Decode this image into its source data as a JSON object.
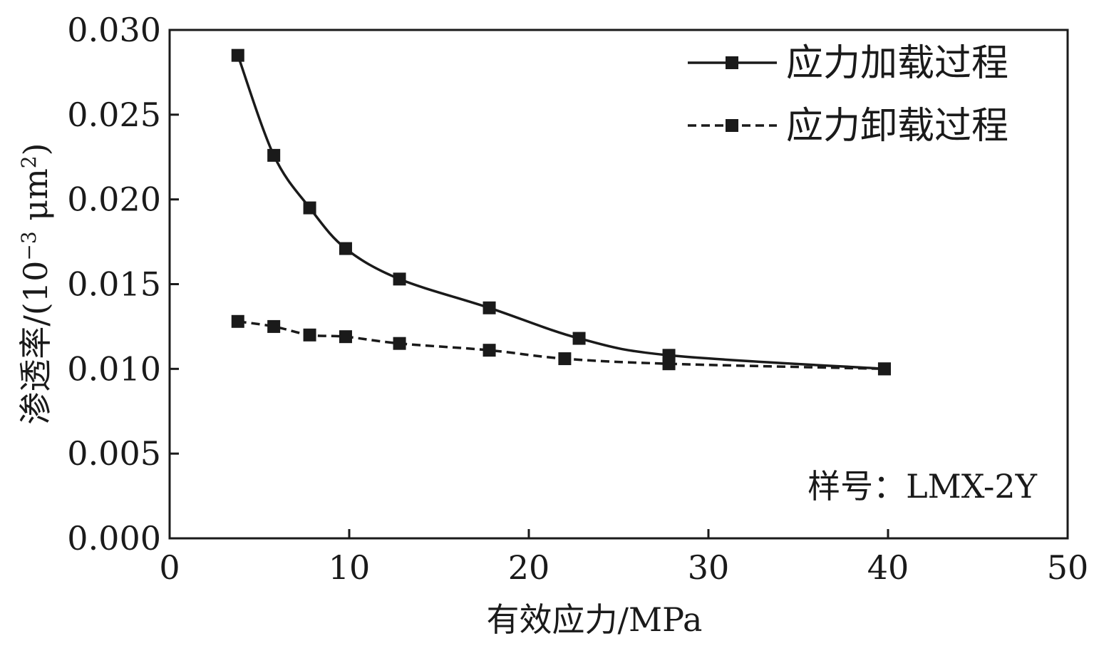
{
  "chart_data": {
    "type": "line",
    "xlabel": "有效应力/MPa",
    "ylabel": "渗透率/(10",
    "ylabel_exp1": "−3",
    "ylabel_mid": " μm",
    "ylabel_exp2": "2",
    "ylabel_end": ")",
    "xlim": [
      0,
      50
    ],
    "ylim": [
      0,
      0.03
    ],
    "x_ticks": [
      0,
      10,
      20,
      30,
      40,
      50
    ],
    "x_tick_labels": [
      "0",
      "10",
      "20",
      "30",
      "40",
      "50"
    ],
    "y_ticks": [
      0,
      0.005,
      0.01,
      0.015,
      0.02,
      0.025,
      0.03
    ],
    "y_tick_labels": [
      "0.000",
      "0.005",
      "0.010",
      "0.015",
      "0.020",
      "0.025",
      "0.030"
    ],
    "grid": false,
    "legend_position": "top-right",
    "annotation": "样号：LMX-2Y",
    "series": [
      {
        "name": "应力加载过程",
        "line_style": "solid",
        "marker": "square",
        "color": "#1a1a1a",
        "x": [
          3.8,
          5.8,
          7.8,
          9.8,
          12.8,
          17.8,
          22.8,
          27.8,
          39.8
        ],
        "y": [
          0.0285,
          0.0226,
          0.0195,
          0.0171,
          0.0153,
          0.0136,
          0.0118,
          0.0108,
          0.01
        ]
      },
      {
        "name": "应力卸载过程",
        "line_style": "dashed",
        "marker": "square",
        "color": "#1a1a1a",
        "x": [
          3.8,
          5.8,
          7.8,
          9.8,
          12.8,
          17.8,
          22.0,
          27.8,
          39.8
        ],
        "y": [
          0.0128,
          0.0125,
          0.012,
          0.0119,
          0.0115,
          0.0111,
          0.0106,
          0.0103,
          0.01
        ]
      }
    ]
  }
}
